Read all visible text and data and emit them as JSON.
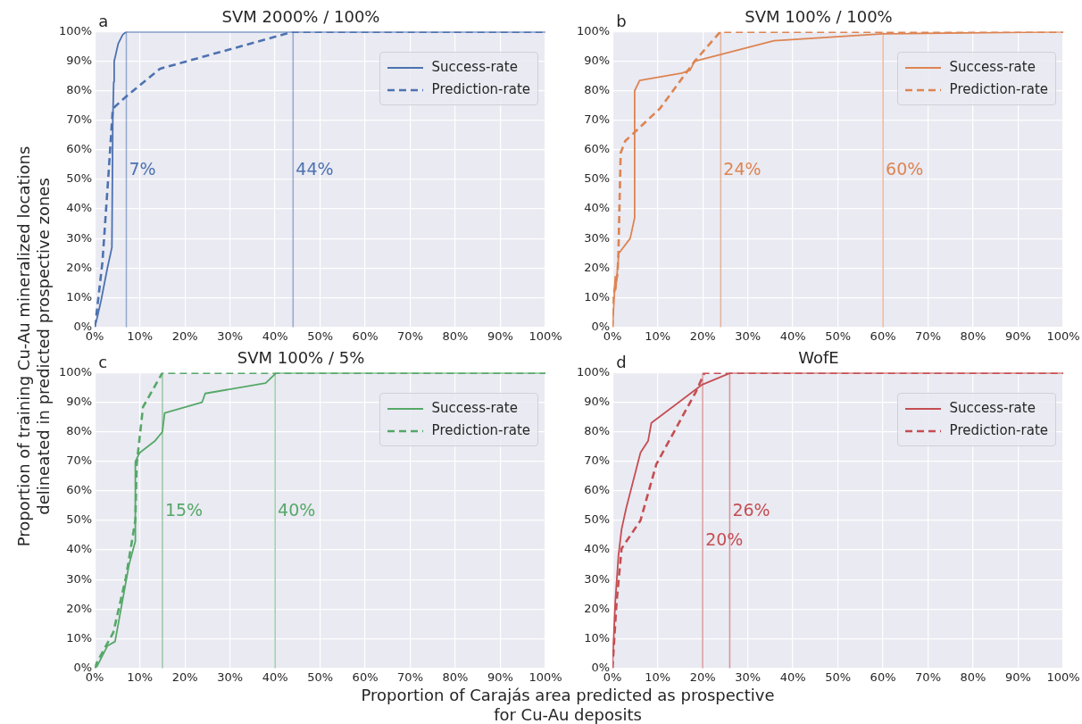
{
  "chart_data": [
    {
      "type": "line",
      "title": "SVM 2000% / 100%",
      "xlabel": "Proportion of Carajás area predicted as prospective\nfor Cu-Au deposits",
      "ylabel": "Proportion of training Cu-Au mineralized locations\ndelineated in predicted prospective zones",
      "annotations": [
        "a",
        {
          "text": "7%",
          "x": 7,
          "y": 53
        },
        {
          "text": "44%",
          "x": 44,
          "y": 53
        }
      ],
      "series": [
        {
          "name": "Success-rate",
          "color": "#4c72b0",
          "line_style": "solid",
          "x": [
            0,
            0.5,
            1.4,
            2.8,
            3.8,
            4,
            4.2,
            4.3,
            5.2,
            6.2,
            7,
            100
          ],
          "values": [
            0,
            3,
            9,
            20,
            27,
            70,
            83,
            90,
            96,
            99,
            100,
            100
          ]
        },
        {
          "name": "Prediction-rate",
          "color": "#4c72b0",
          "line_style": "dashed",
          "x": [
            0,
            0.5,
            1.7,
            3.1,
            4,
            6.9,
            14.5,
            44,
            100
          ],
          "values": [
            0,
            6,
            22,
            53,
            74,
            78,
            87.5,
            100,
            100
          ]
        }
      ],
      "ref_lines": [
        {
          "axis": "x",
          "value": 7,
          "color": "#4c72b0"
        },
        {
          "axis": "x",
          "value": 44,
          "color": "#4c72b0"
        }
      ],
      "xlim": [
        0,
        100
      ],
      "ylim": [
        0,
        100
      ],
      "xticks": [
        {
          "value": 0,
          "label": "0%"
        },
        {
          "value": 10,
          "label": "10%"
        },
        {
          "value": 20,
          "label": "20%"
        },
        {
          "value": 30,
          "label": "30%"
        },
        {
          "value": 40,
          "label": "40%"
        },
        {
          "value": 50,
          "label": "50%"
        },
        {
          "value": 60,
          "label": "60%"
        },
        {
          "value": 70,
          "label": "70%"
        },
        {
          "value": 80,
          "label": "80%"
        },
        {
          "value": 90,
          "label": "90%"
        },
        {
          "value": 100,
          "label": "100%"
        }
      ],
      "yticks": [
        {
          "value": 0,
          "label": "0%"
        },
        {
          "value": 10,
          "label": "10%"
        },
        {
          "value": 20,
          "label": "20%"
        },
        {
          "value": 30,
          "label": "30%"
        },
        {
          "value": 40,
          "label": "40%"
        },
        {
          "value": 50,
          "label": "50%"
        },
        {
          "value": 60,
          "label": "60%"
        },
        {
          "value": 70,
          "label": "70%"
        },
        {
          "value": 80,
          "label": "80%"
        },
        {
          "value": 90,
          "label": "90%"
        },
        {
          "value": 100,
          "label": "100%"
        }
      ],
      "grid": true,
      "legend": "top right",
      "marker": "none"
    },
    {
      "type": "line",
      "title": "SVM 100% / 100%",
      "annotations": [
        "b",
        {
          "text": "24%",
          "x": 24,
          "y": 53
        },
        {
          "text": "60%",
          "x": 60,
          "y": 53
        }
      ],
      "series": [
        {
          "name": "Success-rate",
          "color": "#dd8452",
          "line_style": "solid",
          "x": [
            0,
            0.6,
            0.7,
            1.4,
            3.9,
            4.9,
            4.9,
            6,
            15.4,
            17.2,
            18.2,
            35.8,
            60,
            100
          ],
          "values": [
            0,
            17,
            12.7,
            25,
            30,
            37,
            80,
            83.5,
            86,
            87,
            90,
            97,
            99.3,
            100
          ]
        },
        {
          "name": "Prediction-rate",
          "color": "#dd8452",
          "line_style": "dashed",
          "x": [
            0,
            0,
            1.1,
            1.3,
            1.8,
            2.8,
            10.5,
            18.2,
            23.9,
            100
          ],
          "values": [
            0,
            9,
            18,
            25,
            59,
            63,
            74,
            90,
            100,
            100
          ]
        }
      ],
      "ref_lines": [
        {
          "axis": "x",
          "value": 24,
          "color": "#dd8452"
        },
        {
          "axis": "x",
          "value": 60,
          "color": "#dd8452"
        }
      ],
      "xlim": [
        0,
        100
      ],
      "ylim": [
        0,
        100
      ],
      "xticks": [
        {
          "value": 0,
          "label": "0%"
        },
        {
          "value": 10,
          "label": "10%"
        },
        {
          "value": 20,
          "label": "20%"
        },
        {
          "value": 30,
          "label": "30%"
        },
        {
          "value": 40,
          "label": "40%"
        },
        {
          "value": 50,
          "label": "50%"
        },
        {
          "value": 60,
          "label": "60%"
        },
        {
          "value": 70,
          "label": "70%"
        },
        {
          "value": 80,
          "label": "80%"
        },
        {
          "value": 90,
          "label": "90%"
        },
        {
          "value": 100,
          "label": "100%"
        }
      ],
      "yticks": [
        {
          "value": 0,
          "label": "0%"
        },
        {
          "value": 10,
          "label": "10%"
        },
        {
          "value": 20,
          "label": "20%"
        },
        {
          "value": 30,
          "label": "30%"
        },
        {
          "value": 40,
          "label": "40%"
        },
        {
          "value": 50,
          "label": "50%"
        },
        {
          "value": 60,
          "label": "60%"
        },
        {
          "value": 70,
          "label": "70%"
        },
        {
          "value": 80,
          "label": "80%"
        },
        {
          "value": 90,
          "label": "90%"
        },
        {
          "value": 100,
          "label": "100%"
        }
      ],
      "grid": true,
      "legend": "top right",
      "marker": "none"
    },
    {
      "type": "line",
      "title": "SVM 100% / 5%",
      "annotations": [
        "c",
        {
          "text": "15%",
          "x": 15,
          "y": 53
        },
        {
          "text": "40%",
          "x": 40,
          "y": 53
        }
      ],
      "series": [
        {
          "name": "Success-rate",
          "color": "#55a868",
          "line_style": "solid",
          "x": [
            0,
            0.5,
            2.8,
            4.5,
            7.6,
            9,
            9,
            10,
            13.4,
            15,
            15.5,
            23.8,
            24.5,
            37.9,
            40.3,
            100
          ],
          "values": [
            0,
            0.6,
            7.5,
            9,
            35,
            43,
            70,
            73,
            77,
            80,
            86.4,
            90,
            93,
            96.5,
            100,
            100
          ]
        },
        {
          "name": "Prediction-rate",
          "color": "#55a868",
          "line_style": "dashed",
          "x": [
            0,
            0.5,
            4.1,
            6.9,
            9,
            9.3,
            10.7,
            15,
            100
          ],
          "values": [
            0,
            2,
            12,
            30.6,
            50,
            69,
            88.4,
            100,
            100
          ]
        }
      ],
      "ref_lines": [
        {
          "axis": "x",
          "value": 15,
          "color": "#55a868"
        },
        {
          "axis": "x",
          "value": 40,
          "color": "#55a868"
        }
      ],
      "xlim": [
        0,
        100
      ],
      "ylim": [
        0,
        100
      ],
      "xticks": [
        {
          "value": 0,
          "label": "0%"
        },
        {
          "value": 10,
          "label": "10%"
        },
        {
          "value": 20,
          "label": "20%"
        },
        {
          "value": 30,
          "label": "30%"
        },
        {
          "value": 40,
          "label": "40%"
        },
        {
          "value": 50,
          "label": "50%"
        },
        {
          "value": 60,
          "label": "60%"
        },
        {
          "value": 70,
          "label": "70%"
        },
        {
          "value": 80,
          "label": "80%"
        },
        {
          "value": 90,
          "label": "90%"
        },
        {
          "value": 100,
          "label": "100%"
        }
      ],
      "yticks": [
        {
          "value": 0,
          "label": "0%"
        },
        {
          "value": 10,
          "label": "10%"
        },
        {
          "value": 20,
          "label": "20%"
        },
        {
          "value": 30,
          "label": "30%"
        },
        {
          "value": 40,
          "label": "40%"
        },
        {
          "value": 50,
          "label": "50%"
        },
        {
          "value": 60,
          "label": "60%"
        },
        {
          "value": 70,
          "label": "70%"
        },
        {
          "value": 80,
          "label": "80%"
        },
        {
          "value": 90,
          "label": "90%"
        },
        {
          "value": 100,
          "label": "100%"
        }
      ],
      "grid": true,
      "legend": "top right",
      "marker": "none"
    },
    {
      "type": "line",
      "title": "WofE",
      "annotations": [
        "d",
        {
          "text": "20%",
          "x": 20,
          "y": 43
        },
        {
          "text": "26%",
          "x": 26,
          "y": 53
        }
      ],
      "series": [
        {
          "name": "Success-rate",
          "color": "#c44e52",
          "line_style": "solid",
          "x": [
            0,
            0,
            0.6,
            1.3,
            2,
            3,
            6.2,
            7.9,
            8.6,
            19.9,
            26.2,
            100
          ],
          "values": [
            0,
            1.7,
            22.5,
            38,
            47,
            54,
            73,
            77,
            83,
            96,
            100,
            100
          ]
        },
        {
          "name": "Prediction-rate",
          "color": "#c44e52",
          "line_style": "dashed",
          "x": [
            0,
            0,
            0.9,
            2,
            6.2,
            9.7,
            18.5,
            20.4,
            100
          ],
          "values": [
            0,
            0.6,
            22.5,
            40.5,
            50,
            69,
            93.6,
            100,
            100
          ]
        }
      ],
      "ref_lines": [
        {
          "axis": "x",
          "value": 20,
          "color": "#c44e52"
        },
        {
          "axis": "x",
          "value": 26,
          "color": "#c44e52"
        }
      ],
      "xlim": [
        0,
        100
      ],
      "ylim": [
        0,
        100
      ],
      "xticks": [
        {
          "value": 0,
          "label": "0%"
        },
        {
          "value": 10,
          "label": "10%"
        },
        {
          "value": 20,
          "label": "20%"
        },
        {
          "value": 30,
          "label": "30%"
        },
        {
          "value": 40,
          "label": "40%"
        },
        {
          "value": 50,
          "label": "50%"
        },
        {
          "value": 60,
          "label": "60%"
        },
        {
          "value": 70,
          "label": "70%"
        },
        {
          "value": 80,
          "label": "80%"
        },
        {
          "value": 90,
          "label": "90%"
        },
        {
          "value": 100,
          "label": "100%"
        }
      ],
      "yticks": [
        {
          "value": 0,
          "label": "0%"
        },
        {
          "value": 10,
          "label": "10%"
        },
        {
          "value": 20,
          "label": "20%"
        },
        {
          "value": 30,
          "label": "30%"
        },
        {
          "value": 40,
          "label": "40%"
        },
        {
          "value": 50,
          "label": "50%"
        },
        {
          "value": 60,
          "label": "60%"
        },
        {
          "value": 70,
          "label": "70%"
        },
        {
          "value": 80,
          "label": "80%"
        },
        {
          "value": 90,
          "label": "90%"
        },
        {
          "value": 100,
          "label": "100%"
        }
      ],
      "grid": true,
      "legend": "top right",
      "marker": "none"
    }
  ]
}
